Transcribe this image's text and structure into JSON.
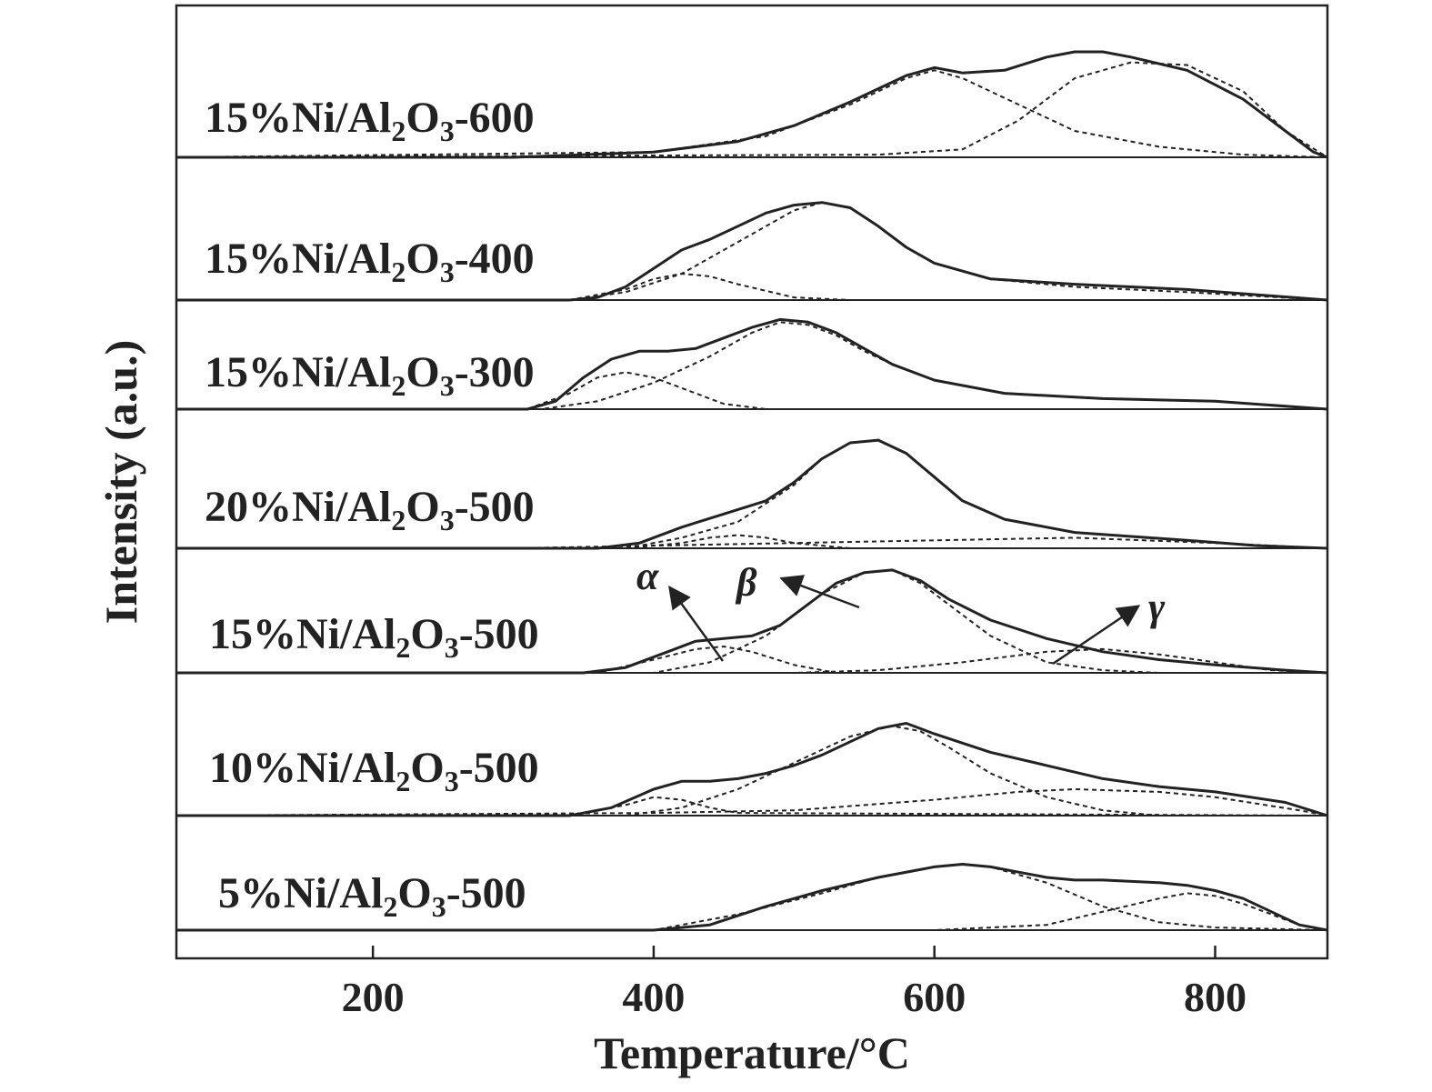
{
  "chart_data": {
    "type": "line",
    "xlabel": "Temperature/°C",
    "ylabel": "Intensity (a.u.)",
    "xlim": [
      60,
      880
    ],
    "xticks": [
      200,
      400,
      600,
      800
    ],
    "grid": false,
    "stacked_offset": true,
    "peak_labels": [
      {
        "text": "α",
        "series": "15%Ni/Al2O3-500",
        "peak_x": 455
      },
      {
        "text": "β",
        "series": "15%Ni/Al2O3-500",
        "peak_x": 530
      },
      {
        "text": "γ",
        "series": "15%Ni/Al2O3-500",
        "peak_x": 700
      }
    ],
    "series": [
      {
        "name": "15%Ni/Al2O3-600",
        "label": {
          "pre": "15%Ni/Al",
          "sub1": "2",
          "mid": "O",
          "sub2": "3",
          "post": "-600"
        },
        "offset": 6,
        "x": [
          60,
          300,
          400,
          460,
          500,
          540,
          580,
          600,
          620,
          650,
          680,
          700,
          720,
          740,
          780,
          820,
          850,
          870,
          880
        ],
        "y": [
          0,
          0,
          0.02,
          0.06,
          0.12,
          0.21,
          0.31,
          0.34,
          0.32,
          0.33,
          0.38,
          0.4,
          0.4,
          0.38,
          0.33,
          0.22,
          0.1,
          0.02,
          0
        ],
        "components": [
          {
            "x": [
              60,
              400,
              480,
              540,
              580,
              600,
              620,
              660,
              700,
              760,
              820,
              880
            ],
            "y": [
              0,
              0.02,
              0.08,
              0.2,
              0.3,
              0.33,
              0.3,
              0.2,
              0.1,
              0.04,
              0.01,
              0
            ]
          },
          {
            "x": [
              60,
              560,
              620,
              660,
              700,
              740,
              780,
              820,
              850,
              880
            ],
            "y": [
              0,
              0.01,
              0.03,
              0.14,
              0.3,
              0.36,
              0.35,
              0.25,
              0.1,
              0
            ]
          }
        ]
      },
      {
        "name": "15%Ni/Al2O3-400",
        "label": {
          "pre": "15%Ni/Al",
          "sub1": "2",
          "mid": "O",
          "sub2": "3",
          "post": "-400"
        },
        "offset": 5,
        "x": [
          60,
          340,
          360,
          380,
          400,
          420,
          440,
          460,
          480,
          500,
          520,
          540,
          560,
          580,
          600,
          640,
          700,
          780,
          880
        ],
        "y": [
          0,
          0,
          0.01,
          0.05,
          0.12,
          0.19,
          0.23,
          0.28,
          0.33,
          0.36,
          0.37,
          0.35,
          0.28,
          0.2,
          0.14,
          0.08,
          0.06,
          0.04,
          0
        ],
        "components": [
          {
            "x": [
              60,
              340,
              380,
              400,
              420,
              440,
              460,
              500,
              540,
              880
            ],
            "y": [
              0,
              0,
              0.04,
              0.08,
              0.1,
              0.09,
              0.06,
              0.01,
              0,
              0
            ]
          },
          {
            "x": [
              60,
              340,
              380,
              420,
              460,
              500,
              520,
              540,
              560,
              580,
              600,
              640,
              700,
              780,
              880
            ],
            "y": [
              0,
              0,
              0.03,
              0.1,
              0.22,
              0.34,
              0.37,
              0.35,
              0.28,
              0.2,
              0.14,
              0.08,
              0.05,
              0.03,
              0
            ]
          }
        ]
      },
      {
        "name": "15%Ni/Al2O3-300",
        "label": {
          "pre": "15%Ni/Al",
          "sub1": "2",
          "mid": "O",
          "sub2": "3",
          "post": "-300"
        },
        "offset": 4,
        "x": [
          60,
          310,
          330,
          350,
          370,
          390,
          410,
          430,
          450,
          470,
          490,
          510,
          530,
          550,
          570,
          600,
          650,
          720,
          800,
          880
        ],
        "y": [
          0,
          0,
          0.03,
          0.12,
          0.19,
          0.22,
          0.22,
          0.23,
          0.27,
          0.31,
          0.34,
          0.33,
          0.29,
          0.23,
          0.17,
          0.11,
          0.06,
          0.04,
          0.03,
          0
        ],
        "components": [
          {
            "x": [
              60,
              310,
              340,
              360,
              380,
              400,
              420,
              450,
              480,
              880
            ],
            "y": [
              0,
              0,
              0.06,
              0.12,
              0.14,
              0.12,
              0.08,
              0.02,
              0,
              0
            ]
          },
          {
            "x": [
              60,
              320,
              360,
              400,
              440,
              470,
              490,
              510,
              530,
              550,
              570,
              600,
              650,
              720,
              800,
              880
            ],
            "y": [
              0,
              0,
              0.03,
              0.1,
              0.2,
              0.29,
              0.33,
              0.32,
              0.28,
              0.22,
              0.17,
              0.11,
              0.06,
              0.04,
              0.03,
              0
            ]
          }
        ]
      },
      {
        "name": "20%Ni/Al2O3-500",
        "label": {
          "pre": "20%Ni/Al",
          "sub1": "2",
          "mid": "O",
          "sub2": "3",
          "post": "-500"
        },
        "offset": 3,
        "x": [
          60,
          360,
          390,
          420,
          450,
          480,
          500,
          520,
          540,
          560,
          580,
          600,
          620,
          650,
          700,
          780,
          830,
          880
        ],
        "y": [
          0,
          0,
          0.02,
          0.08,
          0.13,
          0.18,
          0.25,
          0.34,
          0.4,
          0.41,
          0.36,
          0.27,
          0.18,
          0.11,
          0.06,
          0.03,
          0.01,
          0
        ],
        "components": [
          {
            "x": [
              60,
              380,
              420,
              440,
              460,
              480,
              500,
              540,
              880
            ],
            "y": [
              0,
              0,
              0.02,
              0.04,
              0.05,
              0.04,
              0.02,
              0,
              0
            ]
          },
          {
            "x": [
              60,
              380,
              420,
              460,
              500,
              520,
              540,
              560,
              580,
              600,
              620,
              650,
              700,
              780,
              830,
              880
            ],
            "y": [
              0,
              0,
              0.04,
              0.1,
              0.24,
              0.34,
              0.4,
              0.41,
              0.36,
              0.27,
              0.18,
              0.11,
              0.06,
              0.03,
              0.01,
              0
            ]
          },
          {
            "x": [
              60,
              300,
              400,
              500,
              600,
              700,
              800,
              880
            ],
            "y": [
              0,
              0,
              0.01,
              0.02,
              0.03,
              0.04,
              0.02,
              0
            ]
          }
        ]
      },
      {
        "name": "15%Ni/Al2O3-500",
        "label": {
          "pre": "15%Ni/Al",
          "sub1": "2",
          "mid": "O",
          "sub2": "3",
          "post": "-500"
        },
        "offset": 2,
        "x": [
          60,
          350,
          380,
          410,
          430,
          450,
          470,
          490,
          510,
          530,
          550,
          570,
          590,
          610,
          640,
          680,
          720,
          760,
          800,
          850,
          880
        ],
        "y": [
          0,
          0,
          0.02,
          0.08,
          0.12,
          0.13,
          0.14,
          0.18,
          0.26,
          0.34,
          0.38,
          0.39,
          0.35,
          0.28,
          0.2,
          0.13,
          0.08,
          0.05,
          0.03,
          0.01,
          0
        ],
        "components": [
          {
            "x": [
              60,
              360,
              400,
              430,
              450,
              470,
              500,
              530,
              880
            ],
            "y": [
              0,
              0,
              0.05,
              0.09,
              0.1,
              0.08,
              0.03,
              0,
              0
            ]
          },
          {
            "x": [
              60,
              400,
              440,
              480,
              520,
              550,
              570,
              590,
              610,
              640,
              680,
              720,
              760,
              880
            ],
            "y": [
              0,
              0,
              0.04,
              0.14,
              0.3,
              0.38,
              0.39,
              0.34,
              0.26,
              0.14,
              0.04,
              0.01,
              0,
              0
            ]
          },
          {
            "x": [
              60,
              500,
              560,
              620,
              680,
              720,
              760,
              800,
              840,
              880
            ],
            "y": [
              0,
              0,
              0.01,
              0.04,
              0.08,
              0.09,
              0.07,
              0.04,
              0.01,
              0
            ]
          }
        ]
      },
      {
        "name": "10%Ni/Al2O3-500",
        "label": {
          "pre": "10%Ni/Al",
          "sub1": "2",
          "mid": "O",
          "sub2": "3",
          "post": "-500"
        },
        "offset": 1,
        "x": [
          60,
          340,
          370,
          400,
          420,
          440,
          460,
          480,
          500,
          520,
          540,
          560,
          580,
          600,
          640,
          680,
          720,
          760,
          800,
          850,
          880
        ],
        "y": [
          0,
          0,
          0.03,
          0.1,
          0.13,
          0.13,
          0.14,
          0.16,
          0.19,
          0.23,
          0.28,
          0.33,
          0.35,
          0.31,
          0.24,
          0.19,
          0.14,
          0.11,
          0.09,
          0.05,
          0
        ],
        "components": [
          {
            "x": [
              60,
              340,
              380,
              400,
              420,
              440,
              460,
              880
            ],
            "y": [
              0,
              0,
              0.04,
              0.07,
              0.06,
              0.03,
              0.01,
              0
            ]
          },
          {
            "x": [
              60,
              380,
              420,
              460,
              500,
              540,
              570,
              590,
              610,
              640,
              680,
              720,
              760,
              880
            ],
            "y": [
              0,
              0,
              0.03,
              0.1,
              0.2,
              0.3,
              0.34,
              0.32,
              0.26,
              0.16,
              0.07,
              0.02,
              0,
              0
            ]
          },
          {
            "x": [
              60,
              400,
              500,
              600,
              660,
              700,
              760,
              800,
              860,
              880
            ],
            "y": [
              0,
              0.01,
              0.02,
              0.06,
              0.09,
              0.1,
              0.09,
              0.07,
              0.02,
              0
            ]
          }
        ]
      },
      {
        "name": "5%Ni/Al2O3-500",
        "label": {
          "pre": "5%Ni/Al",
          "sub1": "2",
          "mid": "O",
          "sub2": "3",
          "post": "-500"
        },
        "offset": 0,
        "x": [
          60,
          400,
          440,
          480,
          520,
          560,
          600,
          620,
          640,
          660,
          680,
          700,
          720,
          760,
          780,
          800,
          820,
          840,
          860,
          880
        ],
        "y": [
          0,
          0,
          0.02,
          0.09,
          0.15,
          0.2,
          0.24,
          0.25,
          0.24,
          0.22,
          0.2,
          0.19,
          0.19,
          0.18,
          0.17,
          0.15,
          0.12,
          0.07,
          0.02,
          0
        ],
        "components": [
          {
            "x": [
              60,
              400,
              460,
              520,
              560,
              600,
              620,
              640,
              680,
              720,
              760,
              800,
              880
            ],
            "y": [
              0,
              0,
              0.06,
              0.14,
              0.2,
              0.24,
              0.25,
              0.24,
              0.18,
              0.09,
              0.03,
              0.01,
              0
            ]
          },
          {
            "x": [
              60,
              600,
              680,
              720,
              760,
              780,
              800,
              820,
              840,
              860,
              880
            ],
            "y": [
              0,
              0,
              0.02,
              0.07,
              0.12,
              0.14,
              0.13,
              0.1,
              0.06,
              0.02,
              0
            ]
          }
        ]
      }
    ]
  }
}
